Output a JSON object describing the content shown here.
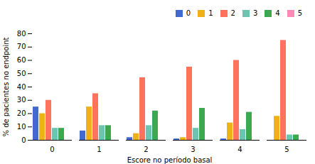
{
  "chart_data": {
    "type": "bar",
    "xlabel": "Escore no período basal",
    "ylabel": "% de pacientes no endpoint",
    "categories": [
      "0",
      "1",
      "2",
      "3",
      "4",
      "5"
    ],
    "series": [
      {
        "name": "0",
        "values": [
          25,
          7,
          2,
          1,
          1,
          0
        ]
      },
      {
        "name": "1",
        "values": [
          20,
          25,
          5,
          2,
          13,
          18
        ]
      },
      {
        "name": "2",
        "values": [
          30,
          35,
          47,
          55,
          60,
          75
        ]
      },
      {
        "name": "3",
        "values": [
          9,
          11,
          11,
          9,
          8,
          4
        ]
      },
      {
        "name": "4",
        "values": [
          9,
          11,
          22,
          24,
          21,
          4
        ]
      },
      {
        "name": "5",
        "values": [
          0,
          0,
          0,
          0,
          0,
          0
        ]
      }
    ],
    "ylim": [
      0,
      80
    ],
    "yticks": [
      0,
      10,
      20,
      30,
      40,
      50,
      60,
      70,
      80
    ],
    "grid": false,
    "legend": "upper right"
  }
}
